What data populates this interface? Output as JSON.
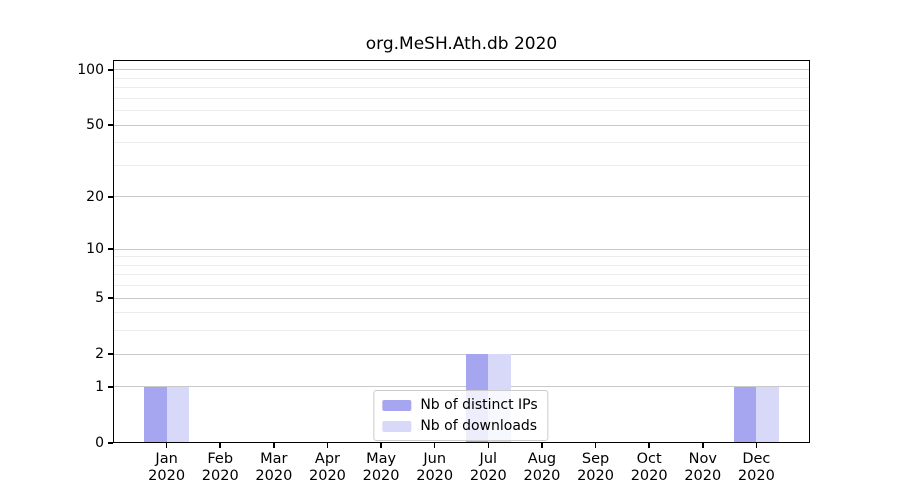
{
  "title": "org.MeSH.Ath.db 2020",
  "chart_data": {
    "type": "bar",
    "categories": [
      "Jan",
      "Feb",
      "Mar",
      "Apr",
      "May",
      "Jun",
      "Jul",
      "Aug",
      "Sep",
      "Oct",
      "Nov",
      "Dec"
    ],
    "category_sublabel": "2020",
    "series": [
      {
        "name": "Nb of distinct IPs",
        "color": "#a5a5f0",
        "values": [
          1,
          0,
          0,
          0,
          0,
          0,
          2,
          0,
          0,
          0,
          0,
          1
        ]
      },
      {
        "name": "Nb of downloads",
        "color": "#d8d8f8",
        "values": [
          1,
          0,
          0,
          0,
          0,
          0,
          2,
          0,
          0,
          0,
          0,
          1
        ]
      }
    ],
    "yticks": [
      0,
      1,
      2,
      5,
      10,
      20,
      50,
      100
    ],
    "minor_gridlines": [
      3,
      4,
      6,
      7,
      8,
      9,
      30,
      40,
      60,
      70,
      80,
      90
    ],
    "yscale": "log1p",
    "ylim": [
      0,
      113
    ],
    "grid": true,
    "legend_position": "lower center",
    "axis_color": "#000000",
    "major_grid_color": "#c9c9c9",
    "minor_grid_color": "#ededed"
  }
}
